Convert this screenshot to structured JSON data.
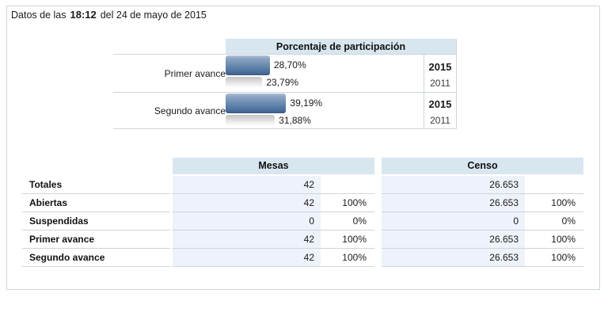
{
  "page": {
    "title": {
      "prefix": "Datos de las",
      "time": "18:12",
      "suffix": "del 24 de mayo de 2015"
    }
  },
  "participation": {
    "header": "Porcentaje de participación",
    "rows": [
      {
        "label": "Primer avance",
        "current": {
          "year": "2015",
          "value": 28.7,
          "display": "28,70%"
        },
        "previous": {
          "year": "2011",
          "value": 23.79,
          "display": "23,79%"
        }
      },
      {
        "label": "Segundo avance",
        "current": {
          "year": "2015",
          "value": 39.19,
          "display": "39,19%"
        },
        "previous": {
          "year": "2011",
          "value": 31.88,
          "display": "31,88%"
        }
      }
    ]
  },
  "summary": {
    "row_labels": [
      "Totales",
      "Abiertas",
      "Suspendidas",
      "Primer avance",
      "Segundo avance"
    ],
    "tables": [
      {
        "header": "Mesas",
        "rows": [
          {
            "value": "42",
            "pct": ""
          },
          {
            "value": "42",
            "pct": "100%"
          },
          {
            "value": "0",
            "pct": "0%"
          },
          {
            "value": "42",
            "pct": "100%"
          },
          {
            "value": "42",
            "pct": "100%"
          }
        ]
      },
      {
        "header": "Censo",
        "rows": [
          {
            "value": "26.653",
            "pct": ""
          },
          {
            "value": "26.653",
            "pct": "100%"
          },
          {
            "value": "0",
            "pct": "0%"
          },
          {
            "value": "26.653",
            "pct": "100%"
          },
          {
            "value": "26.653",
            "pct": "100%"
          }
        ]
      }
    ]
  },
  "chart_data": {
    "type": "bar",
    "title": "Porcentaje de participación",
    "categories": [
      "Primer avance",
      "Segundo avance"
    ],
    "series": [
      {
        "name": "2015",
        "values": [
          28.7,
          39.19
        ]
      },
      {
        "name": "2011",
        "values": [
          23.79,
          31.88
        ]
      }
    ],
    "value_format": "percent",
    "xlim": [
      0,
      100
    ],
    "orientation": "horizontal",
    "legend_position": "right-column-years"
  },
  "colors": {
    "header_bg": "#d8e6ef",
    "value_cell_bg": "#eef2fa",
    "border": "#cdd5da",
    "frame_border": "#ccd7dd",
    "bar_blue": "#4d70a0",
    "bar_gray": "#dcdcdc"
  }
}
